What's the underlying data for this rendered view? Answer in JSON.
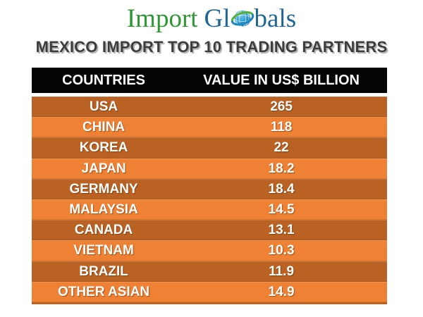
{
  "logo": {
    "word1": "Import",
    "word2_prefix": "Gl",
    "word2_suffix": "bals",
    "green": "#2E9733",
    "blue": "#1E6696",
    "globe_blue": "#1E8FD0",
    "globe_swoosh_green": "#55B03C",
    "globe_swoosh_blue": "#1C86C0"
  },
  "title": "MEXICO IMPORT TOP 10 TRADING PARTNERS",
  "table": {
    "headers": [
      "COUNTRIES",
      "VALUE IN US$ BILLION"
    ],
    "rows": [
      [
        "USA",
        "265"
      ],
      [
        "CHINA",
        "118"
      ],
      [
        "KOREA",
        "22"
      ],
      [
        "JAPAN",
        "18.2"
      ],
      [
        "GERMANY",
        "18.4"
      ],
      [
        "MALAYSIA",
        "14.5"
      ],
      [
        "CANADA",
        "13.1"
      ],
      [
        "VIETNAM",
        "10.3"
      ],
      [
        "BRAZIL",
        "11.9"
      ],
      [
        "OTHER ASIAN",
        "14.9"
      ]
    ],
    "colors": {
      "header_bg": "#050505",
      "row_dark": "#B96224",
      "row_light": "#EE8134",
      "text": "#FFFFFF"
    }
  },
  "chart_data": {
    "type": "table",
    "title": "MEXICO IMPORT TOP 10 TRADING PARTNERS",
    "columns": [
      "COUNTRIES",
      "VALUE IN US$ BILLION"
    ],
    "categories": [
      "USA",
      "CHINA",
      "KOREA",
      "JAPAN",
      "GERMANY",
      "MALAYSIA",
      "CANADA",
      "VIETNAM",
      "BRAZIL",
      "OTHER ASIAN"
    ],
    "values": [
      265,
      118,
      22,
      18.2,
      18.4,
      14.5,
      13.1,
      10.3,
      11.9,
      14.9
    ],
    "unit": "US$ Billion"
  }
}
